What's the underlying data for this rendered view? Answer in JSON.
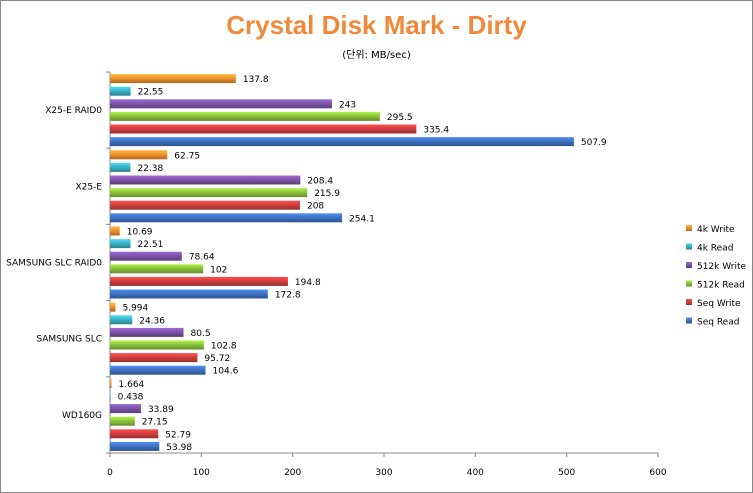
{
  "chart_data": {
    "type": "bar",
    "orientation": "horizontal",
    "title": "Crystal Disk Mark - Dirty",
    "subtitle": "(단위: MB/sec)",
    "xlabel": "",
    "ylabel": "",
    "xlim": [
      0,
      600
    ],
    "xticks": [
      "0",
      "100",
      "200",
      "300",
      "400",
      "500",
      "600"
    ],
    "categories": [
      "X25-E RAID0",
      "X25-E",
      "SAMSUNG SLC RAID0",
      "SAMSUNG SLC",
      "WD160G"
    ],
    "series": [
      {
        "name": "4k Write",
        "color": "#F0922E",
        "values": [
          137.8,
          62.75,
          10.69,
          5.994,
          1.664
        ],
        "labels": [
          "137.8",
          "62.75",
          "10.69",
          "5.994",
          "1.664"
        ]
      },
      {
        "name": "4k Read",
        "color": "#3BB3C8",
        "values": [
          22.55,
          22.38,
          22.51,
          24.36,
          0.438
        ],
        "labels": [
          "22.55",
          "22.38",
          "22.51",
          "24.36",
          "0.438"
        ]
      },
      {
        "name": "512k Write",
        "color": "#7E55A8",
        "values": [
          243,
          208.4,
          78.64,
          80.5,
          33.89
        ],
        "labels": [
          "243",
          "208.4",
          "78.64",
          "80.5",
          "33.89"
        ]
      },
      {
        "name": "512k Read",
        "color": "#8CC43C",
        "values": [
          295.5,
          215.9,
          102,
          102.8,
          27.15
        ],
        "labels": [
          "295.5",
          "215.9",
          "102",
          "102.8",
          "27.15"
        ]
      },
      {
        "name": "Seq Write",
        "color": "#D23F3F",
        "values": [
          335.4,
          208,
          194.8,
          95.72,
          52.79
        ],
        "labels": [
          "335.4",
          "208",
          "194.8",
          "95.72",
          "52.79"
        ]
      },
      {
        "name": "Seq Read",
        "color": "#3F73C4",
        "values": [
          507.9,
          254.1,
          172.8,
          104.6,
          53.98
        ],
        "labels": [
          "507.9",
          "254.1",
          "172.8",
          "104.6",
          "53.98"
        ]
      }
    ],
    "legend": "right",
    "grid": false
  }
}
